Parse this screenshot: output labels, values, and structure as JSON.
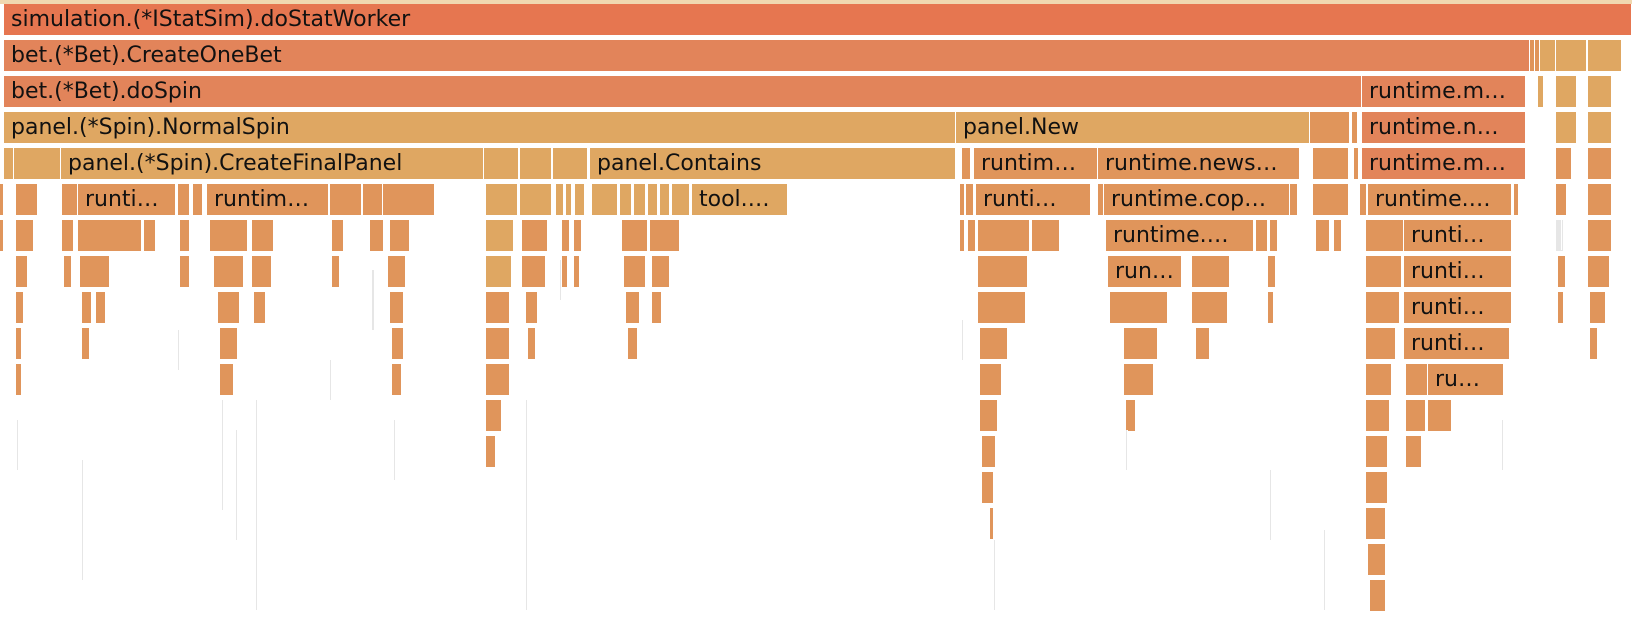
{
  "colors": {
    "root": "#e67650",
    "hot": "#e2845a",
    "warm": "#dfa762",
    "med": "#e0955b",
    "gray": "#e6e6e6",
    "border": "#f0d8b0"
  },
  "labels": {
    "f_root": "simulation.(*IStatSim).doStatWorker",
    "f_createonebet": "bet.(*Bet).CreateOneBet",
    "f_dospin": "bet.(*Bet).doSpin",
    "f_runtime_m_3": "runtime.m…",
    "f_normalspin": "panel.(*Spin).NormalSpin",
    "f_panelnew": "panel.New",
    "f_runtime_n_4": "runtime.n…",
    "f_createfinalpanel": "panel.(*Spin).CreateFinalPanel",
    "f_contains": "panel.Contains",
    "f_runtim_5": "runtim…",
    "f_runtime_news": "runtime.news…",
    "f_runtime_m_5": "runtime.m…",
    "f_runti_6a": "runti…",
    "f_runtim_6b": "runtim…",
    "f_tool": "tool.…",
    "f_runti_6c": "runti…",
    "f_runtime_cop": "runtime.cop…",
    "f_runtime_6": "runtime.…",
    "f_runtime_7": "runtime.…",
    "f_runti_7": "runti…",
    "f_run_8": "run…",
    "f_runti_8": "runti…",
    "f_runti_9": "runti…",
    "f_runti_10": "runti…",
    "f_ru_11": "ru…"
  }
}
